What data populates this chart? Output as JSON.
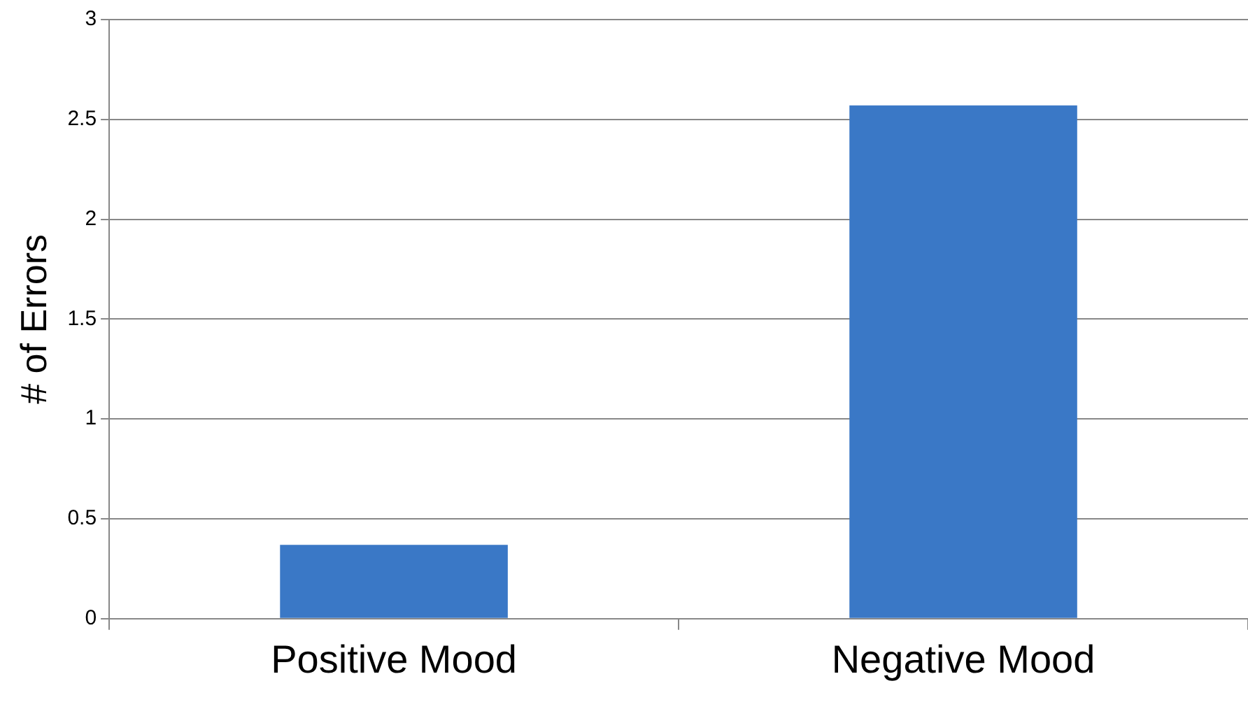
{
  "chart_data": {
    "type": "bar",
    "ylabel": "# of Errors",
    "categories": [
      "Positive Mood",
      "Negative Mood"
    ],
    "values": [
      0.37,
      2.57
    ],
    "color": "#3a78c6",
    "ylim": [
      0,
      3
    ],
    "yticks": [
      0,
      0.5,
      1,
      1.5,
      2,
      2.5,
      3
    ],
    "grid": "y",
    "legend": false
  }
}
